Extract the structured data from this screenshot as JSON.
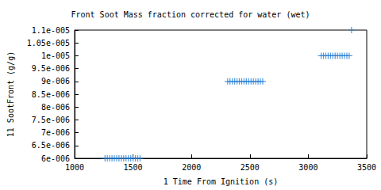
{
  "chart_data": {
    "type": "scatter",
    "title": "Front Soot Mass fraction corrected for water (wet)",
    "x_label": "1 Time From Ignition (s)",
    "y_label": "11 SootFront (g/g)",
    "x": [
      1260,
      1280,
      1300,
      1320,
      1340,
      1360,
      1380,
      1400,
      1420,
      1440,
      1460,
      1480,
      1500,
      1520,
      1540,
      1560,
      2310,
      2330,
      2350,
      2370,
      2390,
      2410,
      2430,
      2450,
      2470,
      2490,
      2510,
      2530,
      2550,
      2570,
      2590,
      2610,
      3110,
      3130,
      3150,
      3170,
      3190,
      3210,
      3230,
      3250,
      3270,
      3290,
      3310,
      3330,
      3350,
      3370
    ],
    "values": [
      6e-06,
      6e-06,
      6e-06,
      6e-06,
      6e-06,
      6e-06,
      6e-06,
      6e-06,
      6e-06,
      6e-06,
      6e-06,
      6e-06,
      6e-06,
      6e-06,
      6e-06,
      6e-06,
      9e-06,
      9e-06,
      9e-06,
      9e-06,
      9e-06,
      9e-06,
      9e-06,
      9e-06,
      9e-06,
      9e-06,
      9e-06,
      9e-06,
      9e-06,
      9e-06,
      9e-06,
      9e-06,
      1e-05,
      1e-05,
      1e-05,
      1e-05,
      1e-05,
      1e-05,
      1e-05,
      1e-05,
      1e-05,
      1e-05,
      1e-05,
      1e-05,
      1e-05,
      1.1e-05
    ],
    "color": "#2a7fd4",
    "marker": "plus",
    "xlim": [
      1000,
      3500
    ],
    "xticks": [
      1000,
      1500,
      2000,
      2500,
      3000,
      3500
    ],
    "ylim": [
      6e-06,
      1.1e-05
    ],
    "yticks": [
      {
        "value": 6e-06,
        "label": "6e-006"
      },
      {
        "value": 6.5e-06,
        "label": "6.5e-006"
      },
      {
        "value": 7e-06,
        "label": "7e-006"
      },
      {
        "value": 7.5e-06,
        "label": "7.5e-006"
      },
      {
        "value": 8e-06,
        "label": "8e-006"
      },
      {
        "value": 8.5e-06,
        "label": "8.5e-006"
      },
      {
        "value": 9e-06,
        "label": "9e-006"
      },
      {
        "value": 9.5e-06,
        "label": "9.5e-006"
      },
      {
        "value": 1e-05,
        "label": "1e-005"
      },
      {
        "value": 1.05e-05,
        "label": "1.05e-005"
      },
      {
        "value": 1.1e-05,
        "label": "1.1e-005"
      }
    ],
    "grid": false
  }
}
